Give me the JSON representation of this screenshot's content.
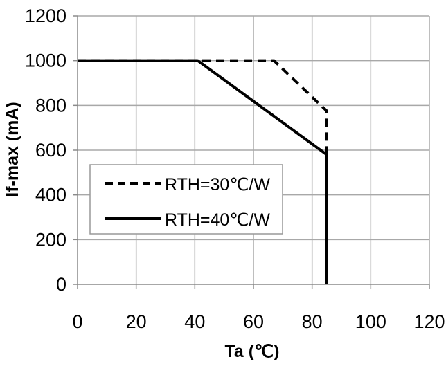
{
  "chart_data": {
    "type": "line",
    "xlabel": "Ta (℃)",
    "ylabel": "If-max (mA)",
    "xlim": [
      0,
      120
    ],
    "ylim": [
      0,
      1200
    ],
    "x_ticks": [
      0,
      20,
      40,
      60,
      80,
      100,
      120
    ],
    "y_ticks": [
      0,
      200,
      400,
      600,
      800,
      1000,
      1200
    ],
    "grid": true,
    "legend_position": "center-left",
    "series": [
      {
        "name": "RTH=30℃/W",
        "line_style": "dashed",
        "color": "#000000",
        "x": [
          0,
          67,
          85,
          85
        ],
        "y": [
          1000,
          1000,
          775,
          0
        ]
      },
      {
        "name": "RTH=40℃/W",
        "line_style": "solid",
        "color": "#000000",
        "x": [
          0,
          41,
          85,
          85
        ],
        "y": [
          1000,
          1000,
          580,
          0
        ]
      }
    ]
  }
}
